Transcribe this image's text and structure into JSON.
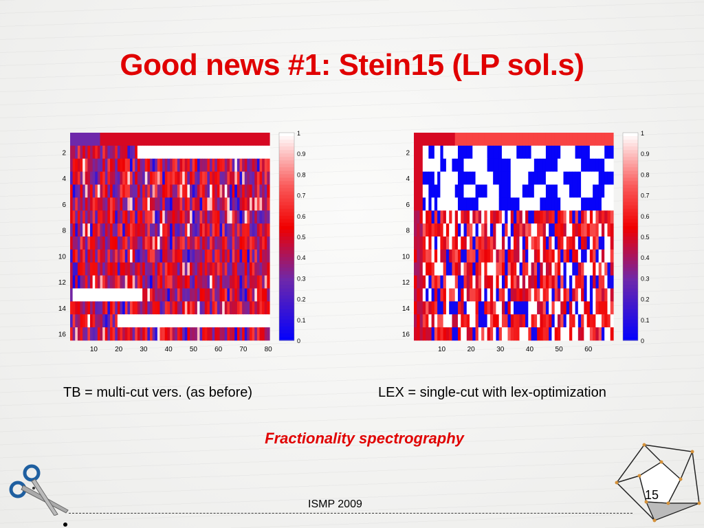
{
  "slide": {
    "title": "Good news #1: Stein15 (LP sol.s)",
    "caption_left": "TB = multi-cut vers. (as before)",
    "caption_right": "LEX = single-cut with lex-optimization",
    "subtitle": "Fractionality spectrography",
    "footer": "ISMP 2009",
    "page_number": "15",
    "colors": {
      "title": "#e00000",
      "subtitle": "#e00000"
    },
    "icons": [
      "scissors-icon",
      "hypercube-icon"
    ]
  },
  "chart_data": [
    {
      "type": "heatmap",
      "title": "",
      "xlabel": "",
      "ylabel": "",
      "x_ticks": [
        10,
        20,
        30,
        40,
        50,
        60,
        70,
        80
      ],
      "y_ticks": [
        2,
        4,
        6,
        8,
        10,
        12,
        14,
        16
      ],
      "xlim": [
        0,
        80
      ],
      "ylim": [
        1,
        16
      ],
      "colorbar": {
        "ticks": [
          0,
          0.1,
          0.2,
          0.3,
          0.4,
          0.5,
          0.6,
          0.7,
          0.8,
          0.9,
          1
        ],
        "colors": [
          "#0000ff",
          "#6633aa",
          "#ff0000",
          "#ffffff"
        ]
      },
      "rows": 16,
      "cols": 80,
      "features": [
        {
          "row": 1,
          "from": 1,
          "to": 12,
          "value": 0.3
        },
        {
          "row": 1,
          "from": 13,
          "to": 80,
          "value": 0.5
        },
        {
          "row": 2,
          "from": 28,
          "to": 80,
          "value": 1.0
        },
        {
          "row": 13,
          "from": 2,
          "to": 29,
          "value": 1.0
        },
        {
          "row": 15,
          "from": 20,
          "to": 80,
          "value": 1.0
        }
      ],
      "description_values": "cells otherwise fractional values between 0.2 and 0.7"
    },
    {
      "type": "heatmap",
      "title": "",
      "xlabel": "",
      "ylabel": "",
      "x_ticks": [
        10,
        20,
        30,
        40,
        50,
        60
      ],
      "y_ticks": [
        2,
        4,
        6,
        8,
        10,
        12,
        14,
        16
      ],
      "xlim": [
        0,
        68
      ],
      "ylim": [
        1,
        16
      ],
      "colorbar": {
        "ticks": [
          0,
          0.1,
          0.2,
          0.3,
          0.4,
          0.5,
          0.6,
          0.7,
          0.8,
          0.9,
          1
        ],
        "colors": [
          "#0000ff",
          "#6633aa",
          "#ff0000",
          "#ffffff"
        ]
      },
      "rows": 16,
      "cols": 68,
      "features": [
        {
          "row": 1,
          "from": 1,
          "to": 14,
          "value": 0.5
        },
        {
          "row": 1,
          "from": 15,
          "to": 68,
          "value": 0.7
        },
        {
          "rows": [
            2,
            6
          ],
          "pattern": "blue/white blocks (0 and 1 values)"
        },
        {
          "rows": [
            7,
            16
          ],
          "pattern": "mixed red/white/blue fractional values"
        }
      ]
    }
  ]
}
